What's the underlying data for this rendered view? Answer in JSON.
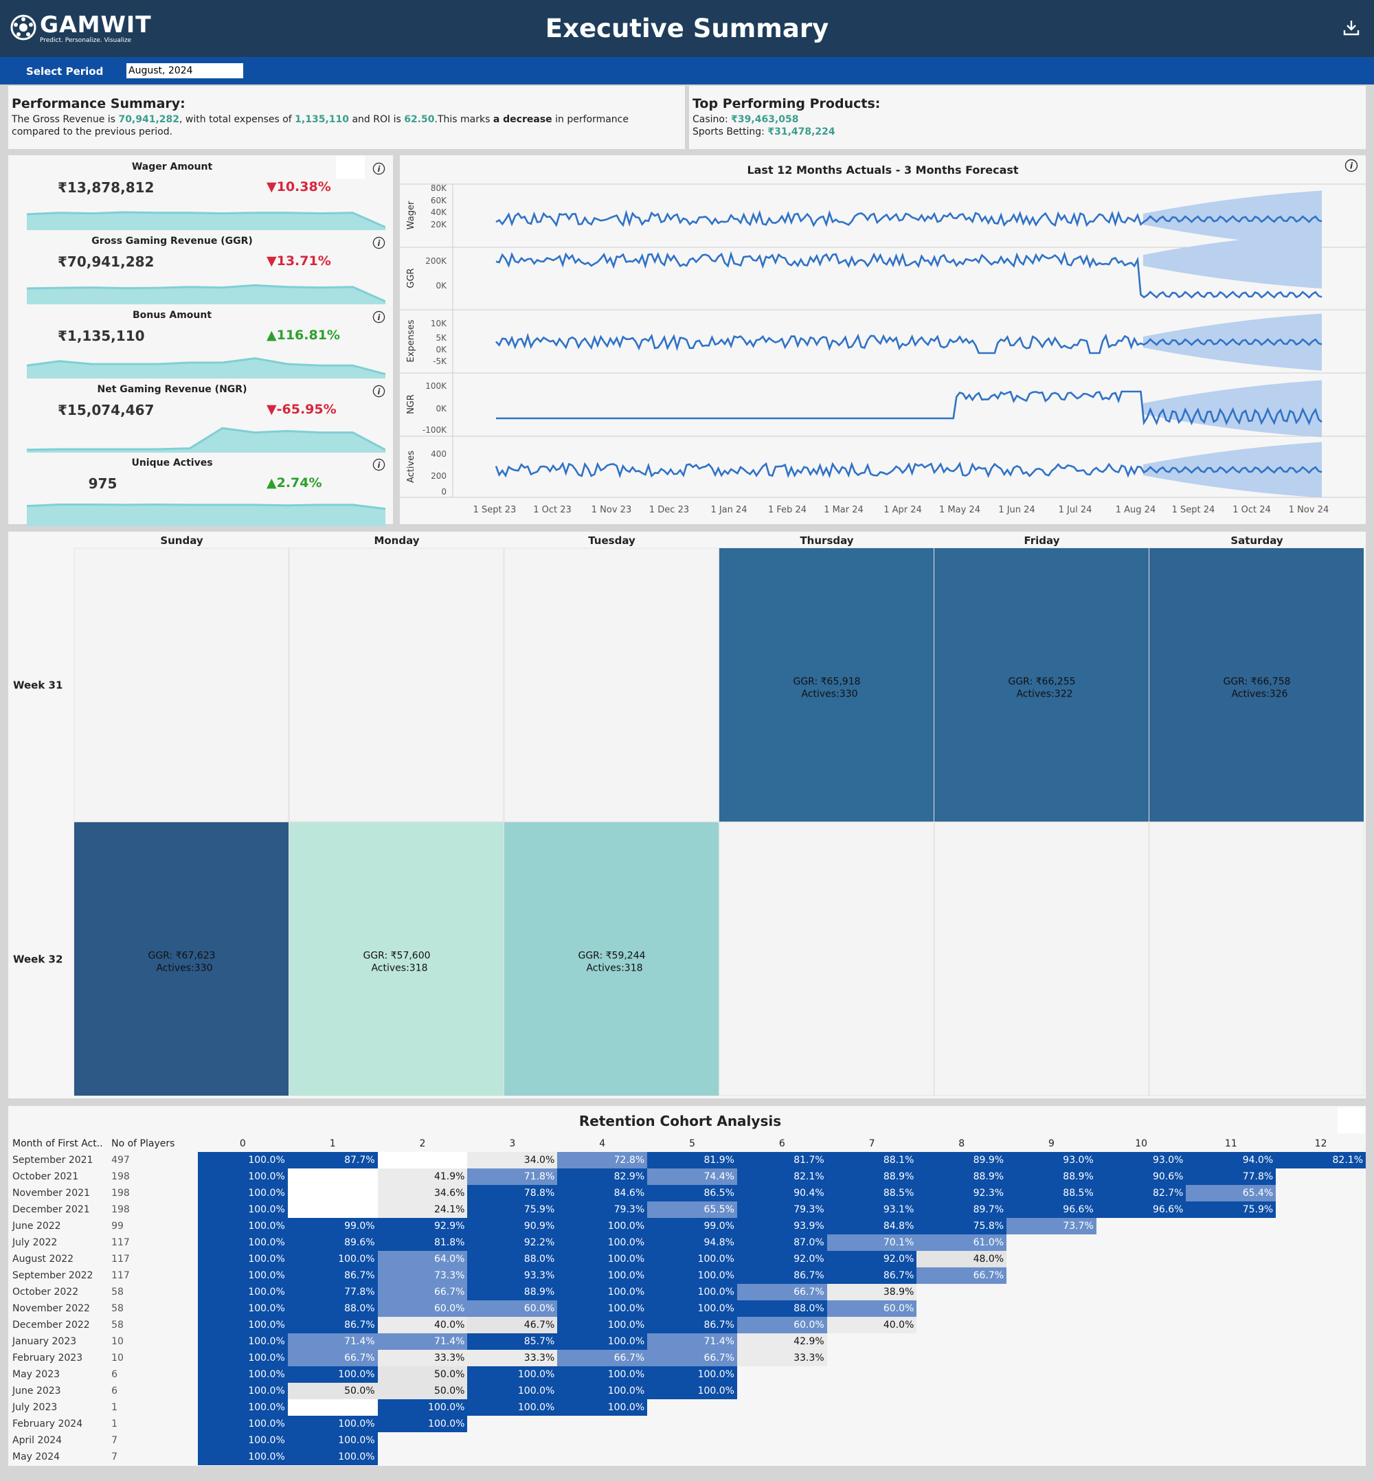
{
  "header": {
    "logo_name": "GAMWIT",
    "logo_tagline": "Predict. Personalize. Visualize",
    "title": "Executive Summary",
    "download_icon": "download-icon"
  },
  "period": {
    "label": "Select Period",
    "value": "August, 2024"
  },
  "summary": {
    "heading": "Performance Summary:",
    "t1": "The Gross Revenue is ",
    "revenue": "70,941,282",
    "t2": ", with total expenses of ",
    "expenses": "1,135,110",
    "t3": " and ROI is ",
    "roi": "62.50",
    "t4": ".This marks ",
    "trend": "a decrease",
    "t5": " in performance compared to the previous period."
  },
  "products": {
    "heading": "Top Performing Products:",
    "items": [
      {
        "label": "Casino: ",
        "value": "₹39,463,058"
      },
      {
        "label": "Sports Betting: ",
        "value": "₹31,478,224"
      }
    ]
  },
  "kpis": [
    {
      "title": "Wager Amount",
      "value": "₹13,878,812",
      "change": "▼10.38%",
      "dir": "down",
      "trend": [
        0.55,
        0.6,
        0.58,
        0.62,
        0.6,
        0.6,
        0.58,
        0.6,
        0.6,
        0.58,
        0.6,
        0.1
      ]
    },
    {
      "title": "Gross Gaming Revenue (GGR)",
      "value": "₹70,941,282",
      "change": "▼13.71%",
      "dir": "down",
      "trend": [
        0.55,
        0.57,
        0.58,
        0.56,
        0.57,
        0.6,
        0.58,
        0.66,
        0.6,
        0.58,
        0.6,
        0.1
      ]
    },
    {
      "title": "Bonus Amount",
      "value": "₹1,135,110",
      "change": "▲116.81%",
      "dir": "up",
      "trend": [
        0.45,
        0.6,
        0.5,
        0.5,
        0.5,
        0.55,
        0.55,
        0.7,
        0.5,
        0.45,
        0.45,
        0.15
      ]
    },
    {
      "title": "Net Gaming Revenue (NGR)",
      "value": "₹15,074,467",
      "change": "▼-65.95%",
      "dir": "down",
      "trend": [
        0.1,
        0.12,
        0.12,
        0.12,
        0.12,
        0.15,
        0.85,
        0.7,
        0.75,
        0.7,
        0.7,
        0.1
      ]
    },
    {
      "title": "Unique Actives",
      "value": "975",
      "change": "▲2.74%",
      "dir": "up",
      "trend": [
        0.7,
        0.75,
        0.75,
        0.74,
        0.75,
        0.74,
        0.74,
        0.74,
        0.72,
        0.74,
        0.74,
        0.6
      ]
    }
  ],
  "forecast": {
    "title": "Last 12 Months Actuals - 3 Months Forecast",
    "x_ticks": [
      "1 Sept 23",
      "1 Oct 23",
      "1 Nov 23",
      "1 Dec 23",
      "1 Jan 24",
      "1 Feb 24",
      "1 Mar 24",
      "1 Apr 24",
      "1 May 24",
      "1 Jun 24",
      "1 Jul 24",
      "1 Aug 24",
      "1 Sept 24",
      "1 Oct 24",
      "1 Nov 24"
    ],
    "panels": [
      {
        "label": "Wager",
        "ticks": [
          "80K",
          "60K",
          "40K",
          "20K"
        ]
      },
      {
        "label": "GGR",
        "ticks": [
          "200K",
          "0K"
        ]
      },
      {
        "label": "Expenses",
        "ticks": [
          "10K",
          "5K",
          "0K",
          "-5K"
        ]
      },
      {
        "label": "NGR",
        "ticks": [
          "100K",
          "0K",
          "-100K"
        ]
      },
      {
        "label": "Actives",
        "ticks": [
          "400",
          "200",
          "0"
        ]
      }
    ]
  },
  "calendar": {
    "days": [
      "Sunday",
      "Monday",
      "Tuesday",
      "Thursday",
      "Friday",
      "Saturday"
    ],
    "weeks": [
      "Week 31",
      "Week 32"
    ],
    "cells": [
      {
        "week": 0,
        "day": 3,
        "ggr": "GGR: ₹65,918",
        "act": "Actives:330",
        "color": "#306a97"
      },
      {
        "week": 0,
        "day": 4,
        "ggr": "GGR: ₹66,255",
        "act": "Actives:322",
        "color": "#306896"
      },
      {
        "week": 0,
        "day": 5,
        "ggr": "GGR: ₹66,758",
        "act": "Actives:326",
        "color": "#306493"
      },
      {
        "week": 1,
        "day": 0,
        "ggr": "GGR: ₹67,623",
        "act": "Actives:330",
        "color": "#2c5986"
      },
      {
        "week": 1,
        "day": 1,
        "ggr": "GGR: ₹57,600",
        "act": "Actives:318",
        "color": "#bde6db"
      },
      {
        "week": 1,
        "day": 2,
        "ggr": "GGR: ₹59,244",
        "act": "Actives:318",
        "color": "#97d1d0"
      }
    ]
  },
  "cohort": {
    "title": "Retention Cohort Analysis",
    "col_month": "Month of First Act..",
    "col_players": "No of Players",
    "periods": [
      "0",
      "1",
      "2",
      "3",
      "4",
      "5",
      "6",
      "7",
      "8",
      "9",
      "10",
      "11",
      "12"
    ],
    "rows": [
      {
        "m": "September 2021",
        "n": "497",
        "v": [
          "100.0%",
          "87.7%",
          "",
          "34.0%",
          "72.8%",
          "81.9%",
          "81.7%",
          "88.1%",
          "89.9%",
          "93.0%",
          "93.0%",
          "94.0%",
          "82.1%"
        ]
      },
      {
        "m": "October 2021",
        "n": "198",
        "v": [
          "100.0%",
          "",
          "41.9%",
          "71.8%",
          "82.9%",
          "74.4%",
          "82.1%",
          "88.9%",
          "88.9%",
          "88.9%",
          "90.6%",
          "77.8%"
        ]
      },
      {
        "m": "November 2021",
        "n": "198",
        "v": [
          "100.0%",
          "",
          "34.6%",
          "78.8%",
          "84.6%",
          "86.5%",
          "90.4%",
          "88.5%",
          "92.3%",
          "88.5%",
          "82.7%",
          "65.4%"
        ]
      },
      {
        "m": "December 2021",
        "n": "198",
        "v": [
          "100.0%",
          "",
          "24.1%",
          "75.9%",
          "79.3%",
          "65.5%",
          "79.3%",
          "93.1%",
          "89.7%",
          "96.6%",
          "96.6%",
          "75.9%"
        ]
      },
      {
        "m": "June 2022",
        "n": "99",
        "v": [
          "100.0%",
          "99.0%",
          "92.9%",
          "90.9%",
          "100.0%",
          "99.0%",
          "93.9%",
          "84.8%",
          "75.8%",
          "73.7%"
        ]
      },
      {
        "m": "July 2022",
        "n": "117",
        "v": [
          "100.0%",
          "89.6%",
          "81.8%",
          "92.2%",
          "100.0%",
          "94.8%",
          "87.0%",
          "70.1%",
          "61.0%"
        ]
      },
      {
        "m": "August 2022",
        "n": "117",
        "v": [
          "100.0%",
          "100.0%",
          "64.0%",
          "88.0%",
          "100.0%",
          "100.0%",
          "92.0%",
          "92.0%",
          "48.0%"
        ]
      },
      {
        "m": "September 2022",
        "n": "117",
        "v": [
          "100.0%",
          "86.7%",
          "73.3%",
          "93.3%",
          "100.0%",
          "100.0%",
          "86.7%",
          "86.7%",
          "66.7%"
        ]
      },
      {
        "m": "October 2022",
        "n": "58",
        "v": [
          "100.0%",
          "77.8%",
          "66.7%",
          "88.9%",
          "100.0%",
          "100.0%",
          "66.7%",
          "38.9%"
        ]
      },
      {
        "m": "November 2022",
        "n": "58",
        "v": [
          "100.0%",
          "88.0%",
          "60.0%",
          "60.0%",
          "100.0%",
          "100.0%",
          "88.0%",
          "60.0%"
        ]
      },
      {
        "m": "December 2022",
        "n": "58",
        "v": [
          "100.0%",
          "86.7%",
          "40.0%",
          "46.7%",
          "100.0%",
          "86.7%",
          "60.0%",
          "40.0%"
        ]
      },
      {
        "m": "January 2023",
        "n": "10",
        "v": [
          "100.0%",
          "71.4%",
          "71.4%",
          "85.7%",
          "100.0%",
          "71.4%",
          "42.9%"
        ]
      },
      {
        "m": "February 2023",
        "n": "10",
        "v": [
          "100.0%",
          "66.7%",
          "33.3%",
          "33.3%",
          "66.7%",
          "66.7%",
          "33.3%"
        ]
      },
      {
        "m": "May 2023",
        "n": "6",
        "v": [
          "100.0%",
          "100.0%",
          "50.0%",
          "100.0%",
          "100.0%",
          "100.0%"
        ]
      },
      {
        "m": "June 2023",
        "n": "6",
        "v": [
          "100.0%",
          "50.0%",
          "50.0%",
          "100.0%",
          "100.0%",
          "100.0%"
        ]
      },
      {
        "m": "July 2023",
        "n": "1",
        "v": [
          "100.0%",
          "",
          "100.0%",
          "100.0%",
          "100.0%"
        ]
      },
      {
        "m": "February 2024",
        "n": "1",
        "v": [
          "100.0%",
          "100.0%",
          "100.0%"
        ]
      },
      {
        "m": "April 2024",
        "n": "7",
        "v": [
          "100.0%",
          "100.0%"
        ]
      },
      {
        "m": "May 2024",
        "n": "7",
        "v": [
          "100.0%",
          "100.0%"
        ]
      }
    ]
  },
  "colors": {
    "header": "#1f3d5a",
    "bar": "#0f4fa3",
    "accent_teal": "#3a9e8f",
    "down": "#d7263d",
    "up": "#2ca02c",
    "line": "#2f72c6",
    "band": "#b9d0ee",
    "spark_fill": "#a9e0e2",
    "spark_line": "#7fcfd4"
  }
}
